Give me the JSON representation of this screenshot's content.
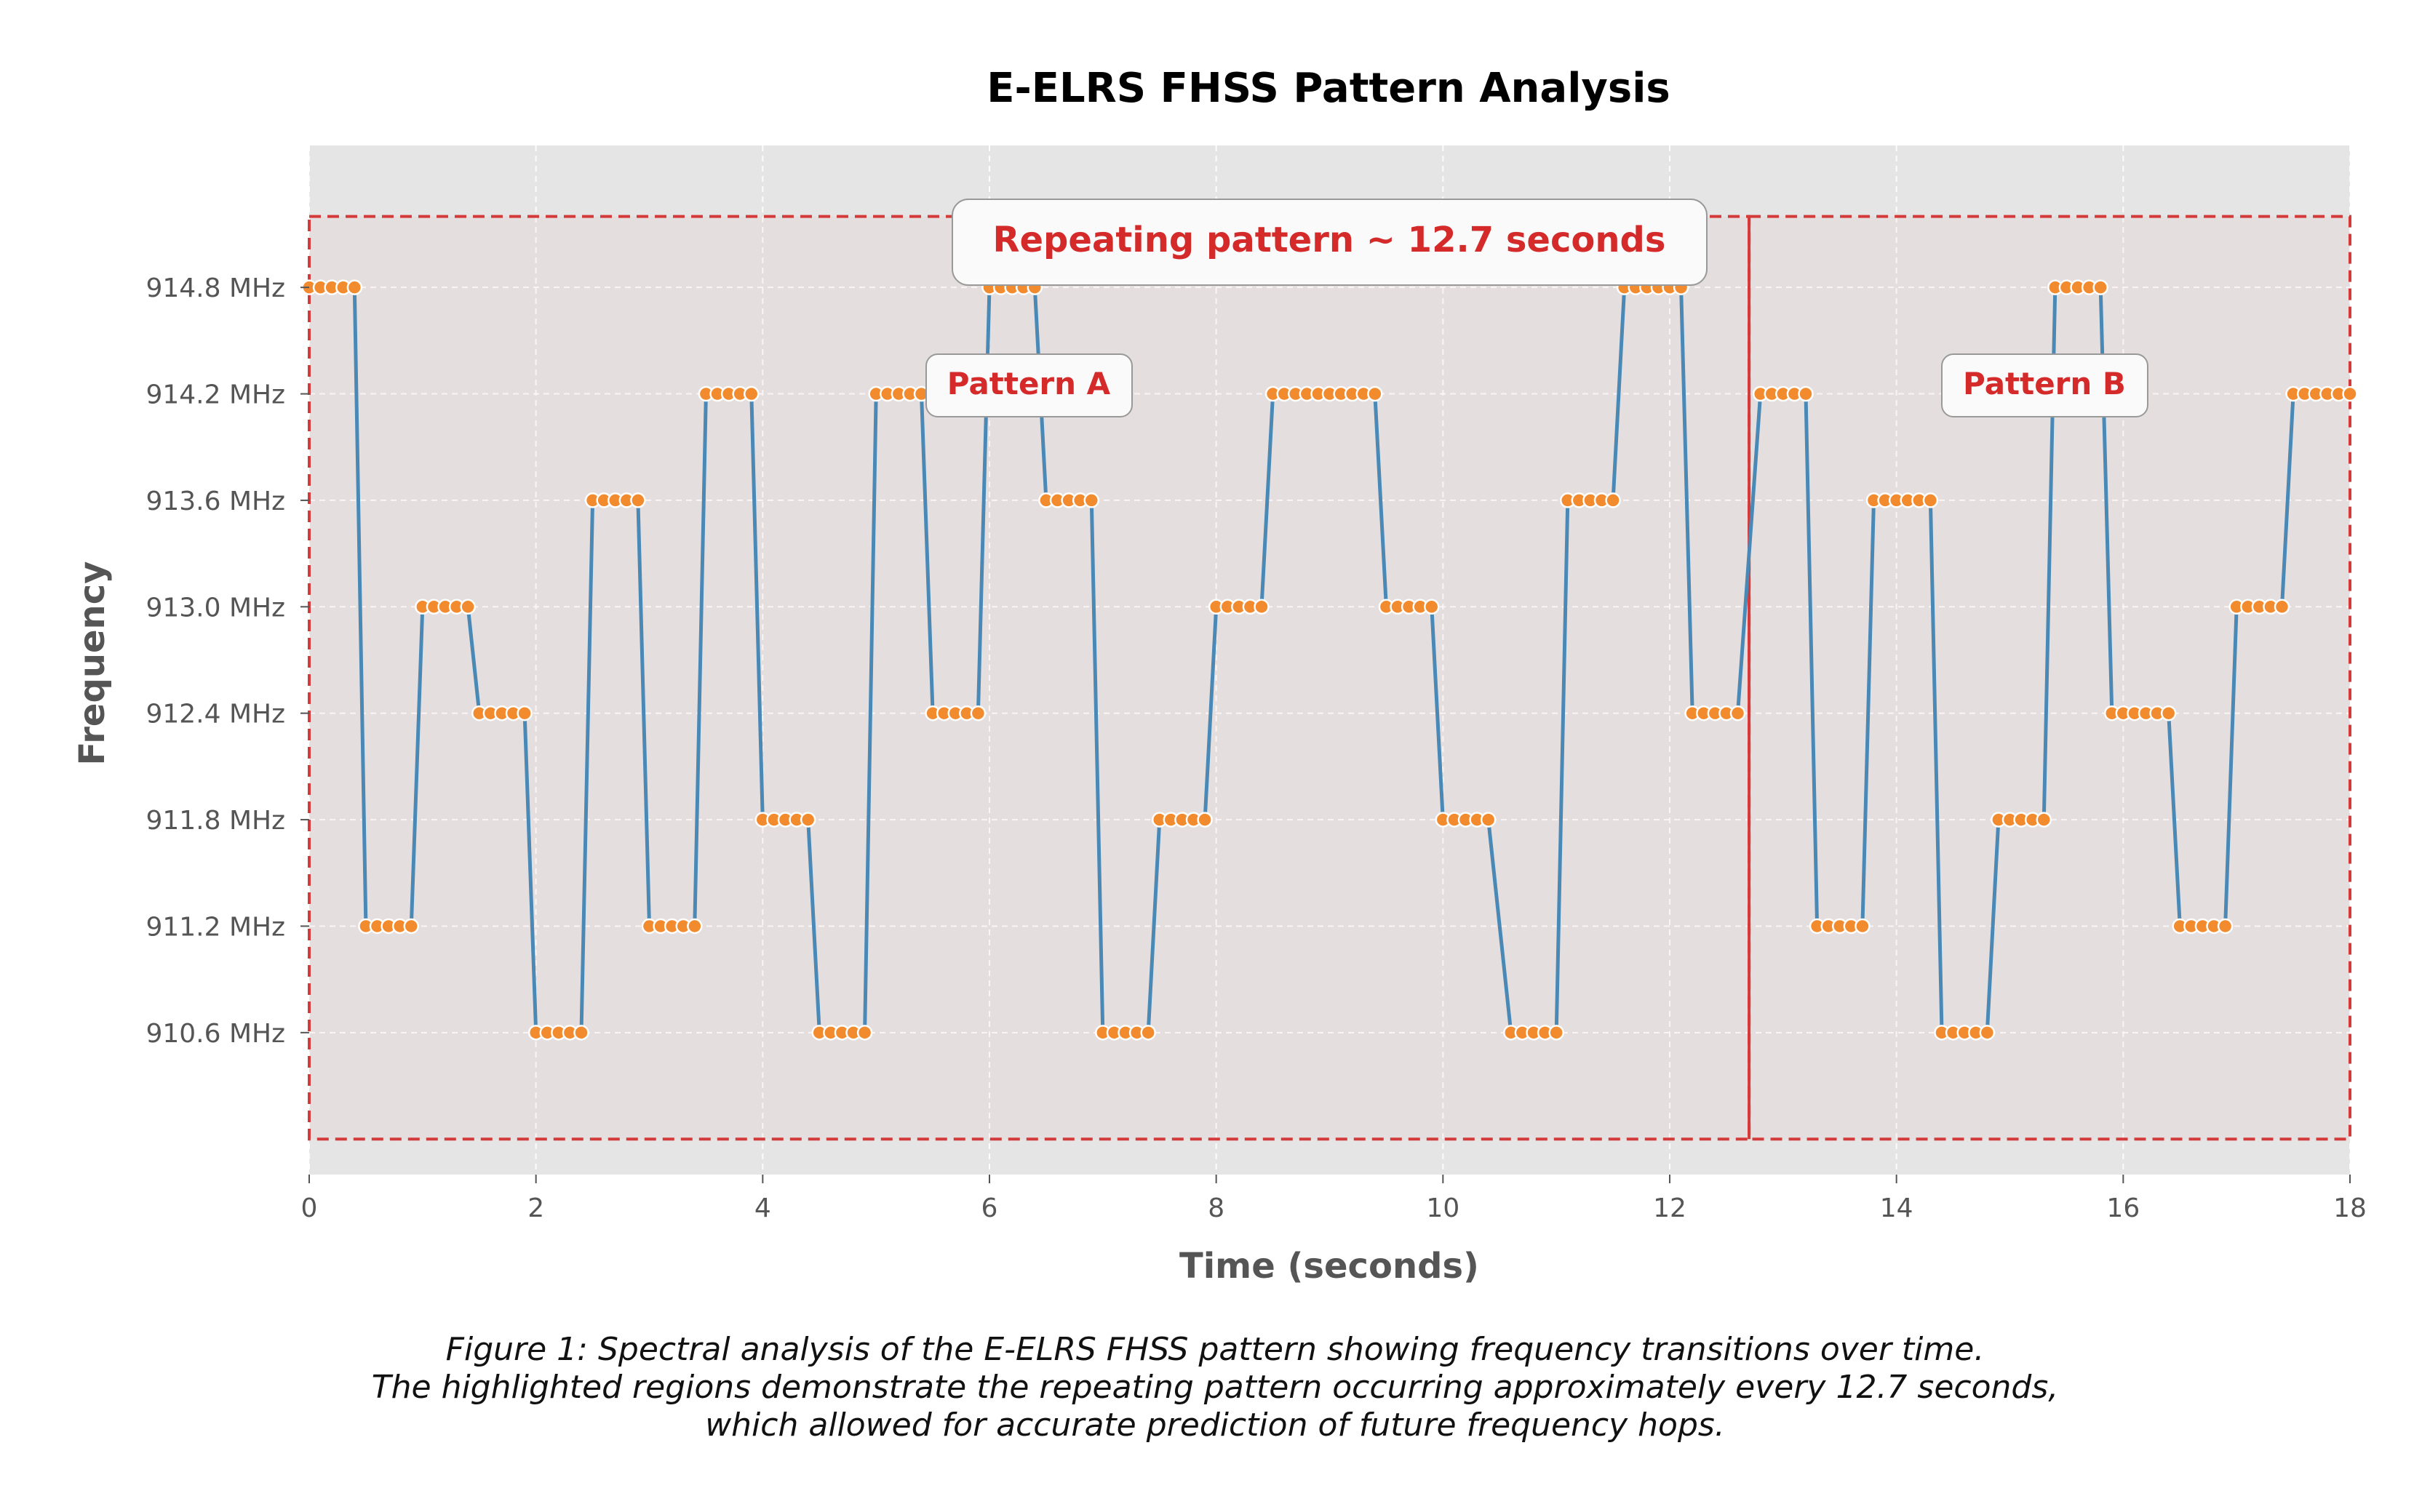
{
  "chart_data": {
    "type": "line",
    "title": "E-ELRS FHSS Pattern Analysis",
    "xlabel": "Time (seconds)",
    "ylabel": "Frequency",
    "xlim": [
      0,
      18
    ],
    "ylim": [
      909.8,
      915.6
    ],
    "xticks": [
      0,
      2,
      4,
      6,
      8,
      10,
      12,
      14,
      16,
      18
    ],
    "yticks": [
      910.6,
      911.2,
      911.8,
      912.4,
      913.0,
      913.6,
      914.2,
      914.8
    ],
    "ytick_labels": [
      "910.6 MHz",
      "911.2 MHz",
      "911.8 MHz",
      "912.4 MHz",
      "913.0 MHz",
      "913.6 MHz",
      "914.2 MHz",
      "914.8 MHz"
    ],
    "grid": true,
    "sample_interval": 0.1,
    "series": [
      {
        "segments": [
          {
            "start": 0.0,
            "count": 5,
            "freq": 914.8
          },
          {
            "start": 0.5,
            "count": 5,
            "freq": 911.2
          },
          {
            "start": 1.0,
            "count": 5,
            "freq": 913.0
          },
          {
            "start": 1.5,
            "count": 5,
            "freq": 912.4
          },
          {
            "start": 2.0,
            "count": 5,
            "freq": 910.6
          },
          {
            "start": 2.5,
            "count": 5,
            "freq": 913.6
          },
          {
            "start": 3.0,
            "count": 5,
            "freq": 911.2
          },
          {
            "start": 3.5,
            "count": 5,
            "freq": 914.2
          },
          {
            "start": 4.0,
            "count": 5,
            "freq": 911.8
          },
          {
            "start": 4.5,
            "count": 5,
            "freq": 910.6
          },
          {
            "start": 5.0,
            "count": 5,
            "freq": 914.2
          },
          {
            "start": 5.5,
            "count": 5,
            "freq": 912.4
          },
          {
            "start": 6.0,
            "count": 5,
            "freq": 914.8
          },
          {
            "start": 6.5,
            "count": 5,
            "freq": 913.6
          },
          {
            "start": 7.0,
            "count": 5,
            "freq": 910.6
          },
          {
            "start": 7.5,
            "count": 5,
            "freq": 911.8
          },
          {
            "start": 8.0,
            "count": 5,
            "freq": 913.0
          },
          {
            "start": 8.5,
            "count": 10,
            "freq": 914.2
          },
          {
            "start": 9.5,
            "count": 5,
            "freq": 913.0
          },
          {
            "start": 10.0,
            "count": 5,
            "freq": 911.8
          },
          {
            "start": 10.6,
            "count": 5,
            "freq": 910.6
          },
          {
            "start": 11.1,
            "count": 5,
            "freq": 913.6
          },
          {
            "start": 11.6,
            "count": 6,
            "freq": 914.8
          },
          {
            "start": 12.2,
            "count": 5,
            "freq": 912.4
          },
          {
            "start": 12.8,
            "count": 5,
            "freq": 914.2
          },
          {
            "start": 13.3,
            "count": 5,
            "freq": 911.2
          },
          {
            "start": 13.8,
            "count": 6,
            "freq": 913.6
          },
          {
            "start": 14.4,
            "count": 5,
            "freq": 910.6
          },
          {
            "start": 14.9,
            "count": 5,
            "freq": 911.8
          },
          {
            "start": 15.4,
            "count": 5,
            "freq": 914.8
          },
          {
            "start": 15.9,
            "count": 6,
            "freq": 912.4
          },
          {
            "start": 16.5,
            "count": 5,
            "freq": 911.2
          },
          {
            "start": 17.0,
            "count": 5,
            "freq": 913.0
          },
          {
            "start": 17.5,
            "count": 6,
            "freq": 914.2
          }
        ]
      }
    ],
    "line_color": "#4a88b5",
    "marker_color": "#f28a2e",
    "highlight_color": "#d43a3a",
    "regions": [
      {
        "label": "Pattern A",
        "x_start": 0,
        "x_end": 12.7,
        "y_start": 910.0,
        "y_end": 915.2
      },
      {
        "label": "Pattern B",
        "x_start": 12.7,
        "x_end": 18.0,
        "y_start": 910.0,
        "y_end": 915.2
      }
    ],
    "divider_x": 12.7,
    "annotation": "Repeating pattern ~ 12.7 seconds",
    "annotation_color": "#d42a2a"
  },
  "caption": {
    "line1": "Figure 1: Spectral analysis of the E-ELRS FHSS pattern showing frequency transitions over time.",
    "line2": "The highlighted regions demonstrate the repeating pattern occurring approximately every 12.7 seconds,",
    "line3": "which allowed for accurate prediction of future frequency hops."
  }
}
